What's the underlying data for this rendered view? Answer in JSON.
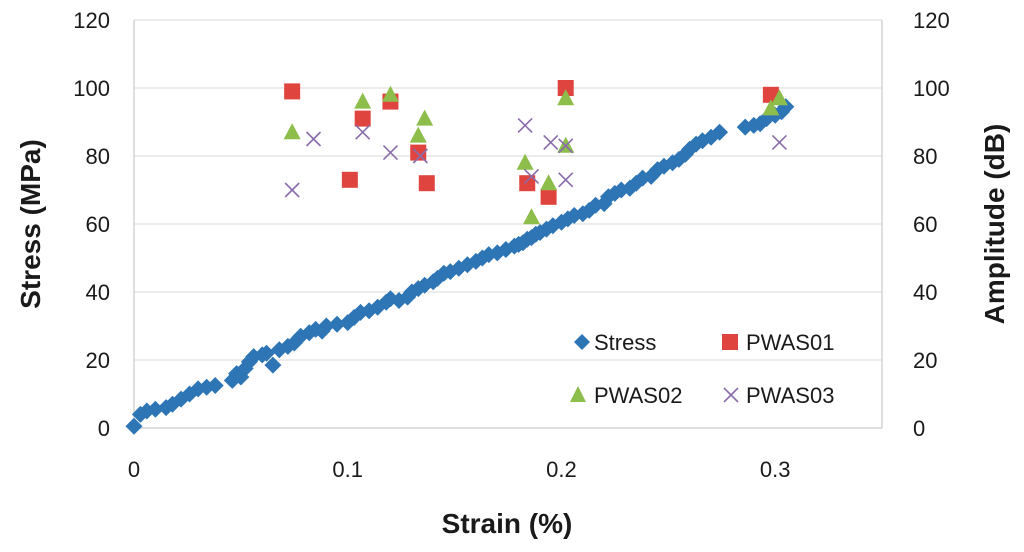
{
  "chart_data": {
    "type": "scatter",
    "title": "",
    "xlabel": "Strain (%)",
    "ylabel_left": "Stress (MPa)",
    "ylabel_right": "Amplitude (dB)",
    "xlim": [
      0,
      0.35
    ],
    "ylim_left": [
      0,
      120
    ],
    "ylim_right": [
      0,
      120
    ],
    "x_ticks": [
      "0",
      "0.1",
      "0.2",
      "0.3"
    ],
    "x_tick_values": [
      0,
      0.1,
      0.2,
      0.3
    ],
    "y_ticks_left": [
      "0",
      "20",
      "40",
      "60",
      "80",
      "100",
      "120"
    ],
    "y_ticks_right": [
      "0",
      "20",
      "40",
      "60",
      "80",
      "100",
      "120"
    ],
    "y_tick_values": [
      0,
      20,
      40,
      60,
      80,
      100,
      120
    ],
    "grid": "horizontal",
    "legend_position": "bottom-right",
    "colors": {
      "stress": "#2e75b6",
      "pwas01": "#e0443e",
      "pwas02": "#8dbd4a",
      "pwas03": "#8a6cab",
      "grid": "#d9d9d9",
      "axis": "#bfbfbf"
    },
    "series": [
      {
        "name": "Stress",
        "axis": "left",
        "marker": "diamond",
        "points": [
          [
            0.0,
            0.5
          ],
          [
            0.003,
            4.0
          ],
          [
            0.006,
            5.0
          ],
          [
            0.01,
            5.5
          ],
          [
            0.015,
            6.0
          ],
          [
            0.018,
            7.0
          ],
          [
            0.022,
            8.5
          ],
          [
            0.026,
            10.0
          ],
          [
            0.03,
            11.5
          ],
          [
            0.034,
            12.0
          ],
          [
            0.038,
            12.5
          ],
          [
            0.046,
            14.0
          ],
          [
            0.048,
            16.0
          ],
          [
            0.05,
            15.0
          ],
          [
            0.052,
            17.5
          ],
          [
            0.054,
            19.5
          ],
          [
            0.056,
            21.0
          ],
          [
            0.06,
            21.5
          ],
          [
            0.062,
            22.0
          ],
          [
            0.065,
            18.5
          ],
          [
            0.068,
            23.0
          ],
          [
            0.072,
            24.0
          ],
          [
            0.075,
            25.0
          ],
          [
            0.078,
            27.0
          ],
          [
            0.082,
            28.0
          ],
          [
            0.085,
            29.0
          ],
          [
            0.088,
            28.5
          ],
          [
            0.09,
            30.0
          ],
          [
            0.095,
            30.5
          ],
          [
            0.1,
            31.0
          ],
          [
            0.103,
            32.5
          ],
          [
            0.106,
            34.0
          ],
          [
            0.11,
            34.5
          ],
          [
            0.114,
            35.5
          ],
          [
            0.118,
            37.0
          ],
          [
            0.12,
            38.0
          ],
          [
            0.124,
            37.5
          ],
          [
            0.128,
            38.5
          ],
          [
            0.13,
            40.0
          ],
          [
            0.133,
            41.0
          ],
          [
            0.136,
            42.0
          ],
          [
            0.14,
            43.0
          ],
          [
            0.142,
            44.0
          ],
          [
            0.145,
            45.5
          ],
          [
            0.148,
            46.0
          ],
          [
            0.152,
            47.0
          ],
          [
            0.156,
            48.0
          ],
          [
            0.16,
            49.0
          ],
          [
            0.163,
            50.0
          ],
          [
            0.166,
            51.0
          ],
          [
            0.17,
            51.5
          ],
          [
            0.174,
            52.5
          ],
          [
            0.178,
            53.5
          ],
          [
            0.18,
            54.0
          ],
          [
            0.182,
            54.5
          ],
          [
            0.184,
            55.5
          ],
          [
            0.186,
            56.0
          ],
          [
            0.188,
            57.0
          ],
          [
            0.19,
            57.5
          ],
          [
            0.193,
            58.5
          ],
          [
            0.196,
            59.5
          ],
          [
            0.2,
            60.5
          ],
          [
            0.203,
            61.5
          ],
          [
            0.206,
            62.5
          ],
          [
            0.21,
            63.0
          ],
          [
            0.213,
            64.0
          ],
          [
            0.216,
            65.5
          ],
          [
            0.22,
            66.0
          ],
          [
            0.222,
            68.0
          ],
          [
            0.225,
            69.0
          ],
          [
            0.228,
            70.0
          ],
          [
            0.232,
            70.5
          ],
          [
            0.235,
            72.0
          ],
          [
            0.238,
            73.5
          ],
          [
            0.242,
            74.0
          ],
          [
            0.245,
            76.0
          ],
          [
            0.248,
            77.0
          ],
          [
            0.252,
            78.0
          ],
          [
            0.255,
            79.0
          ],
          [
            0.258,
            80.5
          ],
          [
            0.26,
            82.0
          ],
          [
            0.263,
            83.5
          ],
          [
            0.266,
            84.5
          ],
          [
            0.27,
            85.5
          ],
          [
            0.274,
            87.0
          ],
          [
            0.286,
            88.5
          ],
          [
            0.29,
            89.0
          ],
          [
            0.293,
            89.5
          ],
          [
            0.296,
            91.0
          ],
          [
            0.3,
            92.0
          ],
          [
            0.303,
            93.0
          ],
          [
            0.305,
            94.5
          ]
        ]
      },
      {
        "name": "PWAS01",
        "axis": "right",
        "marker": "square",
        "points": [
          [
            0.074,
            99
          ],
          [
            0.101,
            73
          ],
          [
            0.107,
            91
          ],
          [
            0.12,
            96
          ],
          [
            0.133,
            81
          ],
          [
            0.137,
            72
          ],
          [
            0.184,
            72
          ],
          [
            0.194,
            68
          ],
          [
            0.202,
            100
          ],
          [
            0.298,
            98
          ]
        ]
      },
      {
        "name": "PWAS02",
        "axis": "right",
        "marker": "triangle",
        "points": [
          [
            0.074,
            87
          ],
          [
            0.107,
            96
          ],
          [
            0.12,
            98
          ],
          [
            0.133,
            86
          ],
          [
            0.136,
            91
          ],
          [
            0.183,
            78
          ],
          [
            0.186,
            62
          ],
          [
            0.194,
            72
          ],
          [
            0.202,
            97
          ],
          [
            0.202,
            83
          ],
          [
            0.298,
            94
          ],
          [
            0.302,
            97
          ]
        ]
      },
      {
        "name": "PWAS03",
        "axis": "right",
        "marker": "x",
        "points": [
          [
            0.074,
            70
          ],
          [
            0.084,
            85
          ],
          [
            0.107,
            87
          ],
          [
            0.12,
            81
          ],
          [
            0.134,
            80
          ],
          [
            0.183,
            89
          ],
          [
            0.186,
            74
          ],
          [
            0.195,
            84
          ],
          [
            0.202,
            83
          ],
          [
            0.202,
            73
          ],
          [
            0.302,
            84
          ]
        ]
      }
    ]
  }
}
